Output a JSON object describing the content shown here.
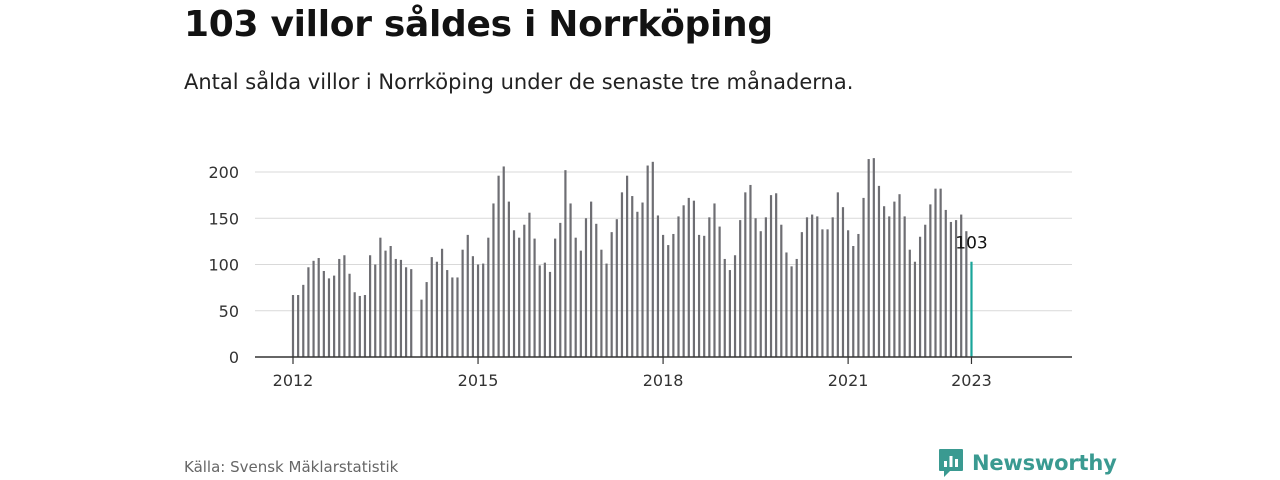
{
  "header": {
    "title": "103 villor såldes i Norrköping",
    "subtitle": "Antal sålda villor i Norrköping under de senaste tre månaderna."
  },
  "footer": {
    "source": "Källa: Svensk Mäklarstatistik",
    "brand": "Newsworthy"
  },
  "colors": {
    "bar": "#6e6e73",
    "highlight": "#1aa59a",
    "grid": "#d9d9d9",
    "axis": "#333333",
    "brand": "#3a9a91"
  },
  "chart_data": {
    "type": "bar",
    "title": "",
    "xlabel": "",
    "ylabel": "",
    "ylim": [
      0,
      225
    ],
    "yticks": [
      0,
      50,
      100,
      150,
      200
    ],
    "xtick_labels": [
      "2012",
      "2015",
      "2018",
      "2021",
      "2023"
    ],
    "grid": true,
    "annotation": {
      "label": "103",
      "target": "2023-01"
    },
    "highlight": "2023-01",
    "categories": [
      "2012-01",
      "2012-02",
      "2012-03",
      "2012-04",
      "2012-05",
      "2012-06",
      "2012-07",
      "2012-08",
      "2012-09",
      "2012-10",
      "2012-11",
      "2012-12",
      "2013-01",
      "2013-02",
      "2013-03",
      "2013-04",
      "2013-05",
      "2013-06",
      "2013-07",
      "2013-08",
      "2013-09",
      "2013-10",
      "2013-11",
      "2013-12",
      "2014-01",
      "2014-02",
      "2014-03",
      "2014-04",
      "2014-05",
      "2014-06",
      "2014-07",
      "2014-08",
      "2014-09",
      "2014-10",
      "2014-11",
      "2014-12",
      "2015-01",
      "2015-02",
      "2015-03",
      "2015-04",
      "2015-05",
      "2015-06",
      "2015-07",
      "2015-08",
      "2015-09",
      "2015-10",
      "2015-11",
      "2015-12",
      "2016-01",
      "2016-02",
      "2016-03",
      "2016-04",
      "2016-05",
      "2016-06",
      "2016-07",
      "2016-08",
      "2016-09",
      "2016-10",
      "2016-11",
      "2016-12",
      "2017-01",
      "2017-02",
      "2017-03",
      "2017-04",
      "2017-05",
      "2017-06",
      "2017-07",
      "2017-08",
      "2017-09",
      "2017-10",
      "2017-11",
      "2017-12",
      "2018-01",
      "2018-02",
      "2018-03",
      "2018-04",
      "2018-05",
      "2018-06",
      "2018-07",
      "2018-08",
      "2018-09",
      "2018-10",
      "2018-11",
      "2018-12",
      "2019-01",
      "2019-02",
      "2019-03",
      "2019-04",
      "2019-05",
      "2019-06",
      "2019-07",
      "2019-08",
      "2019-09",
      "2019-10",
      "2019-11",
      "2019-12",
      "2020-01",
      "2020-02",
      "2020-03",
      "2020-04",
      "2020-05",
      "2020-06",
      "2020-07",
      "2020-08",
      "2020-09",
      "2020-10",
      "2020-11",
      "2020-12",
      "2021-01",
      "2021-02",
      "2021-03",
      "2021-04",
      "2021-05",
      "2021-06",
      "2021-07",
      "2021-08",
      "2021-09",
      "2021-10",
      "2021-11",
      "2021-12",
      "2022-01",
      "2022-02",
      "2022-03",
      "2022-04",
      "2022-05",
      "2022-06",
      "2022-07",
      "2022-08",
      "2022-09",
      "2022-10",
      "2022-11",
      "2022-12",
      "2023-01"
    ],
    "values": [
      67,
      67,
      78,
      97,
      104,
      107,
      93,
      85,
      88,
      106,
      110,
      90,
      70,
      66,
      67,
      110,
      100,
      129,
      115,
      120,
      106,
      105,
      97,
      95,
      null,
      62,
      81,
      108,
      103,
      117,
      94,
      86,
      86,
      116,
      132,
      109,
      100,
      101,
      129,
      166,
      196,
      206,
      168,
      137,
      129,
      143,
      156,
      128,
      99,
      102,
      92,
      128,
      145,
      202,
      166,
      129,
      115,
      150,
      168,
      144,
      116,
      101,
      135,
      149,
      178,
      196,
      174,
      157,
      167,
      207,
      211,
      153,
      132,
      121,
      133,
      152,
      164,
      172,
      169,
      132,
      131,
      151,
      166,
      141,
      106,
      94,
      110,
      148,
      178,
      186,
      150,
      136,
      151,
      175,
      177,
      143,
      113,
      98,
      106,
      135,
      151,
      154,
      152,
      138,
      138,
      151,
      178,
      162,
      137,
      120,
      133,
      172,
      214,
      215,
      185,
      163,
      152,
      168,
      176,
      152,
      116,
      103,
      130,
      143,
      165,
      182,
      182,
      159,
      146,
      148,
      154,
      136,
      103
    ]
  }
}
